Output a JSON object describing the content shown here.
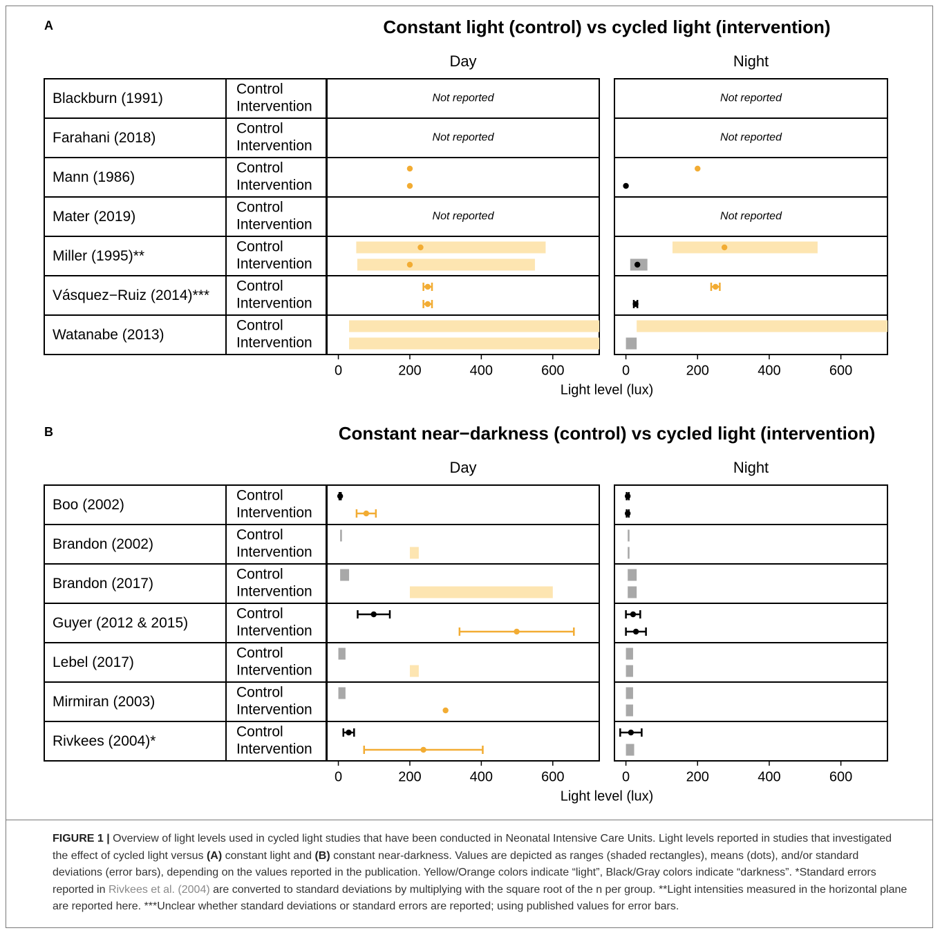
{
  "chart_data": [
    {
      "type": "range",
      "letter": "A",
      "title": "Constant light (control) vs cycled light (intervention)",
      "subplots": [
        "Day",
        "Night"
      ],
      "xlabel": "Light level (lux)",
      "xlim": [
        -32,
        730
      ],
      "xticks": [
        0,
        200,
        400,
        600
      ],
      "not_reported": "Not reported",
      "tones": {
        "light": {
          "mean": "#f2ac33",
          "range": "#fde5b1"
        },
        "dark": {
          "mean": "#000000",
          "range": "#a8a8a8"
        }
      },
      "studies": [
        {
          "name": "Blackburn (1991)",
          "groups": [
            "Control",
            "Intervention"
          ],
          "cells": [
            null,
            null
          ]
        },
        {
          "name": "Farahani (2018)",
          "groups": [
            "Control",
            "Intervention"
          ],
          "cells": [
            null,
            null
          ]
        },
        {
          "name": "Mann (1986)",
          "groups": [
            "Control",
            "Intervention"
          ],
          "cells": [
            [
              {
                "tone": "light",
                "mean": 200
              },
              {
                "tone": "light",
                "mean": 200
              }
            ],
            [
              {
                "tone": "light",
                "mean": 200
              },
              {
                "tone": "dark",
                "mean": 0
              }
            ]
          ]
        },
        {
          "name": "Mater (2019)",
          "groups": [
            "Control",
            "Intervention"
          ],
          "cells": [
            null,
            null
          ]
        },
        {
          "name": "Miller (1995)**",
          "groups": [
            "Control",
            "Intervention"
          ],
          "cells": [
            [
              {
                "tone": "light",
                "range": [
                  50,
                  580
                ],
                "mean": 230
              },
              {
                "tone": "light",
                "range": [
                  53,
                  550
                ],
                "mean": 200
              }
            ],
            [
              {
                "tone": "light",
                "range": [
                  130,
                  535
                ],
                "mean": 275
              },
              {
                "tone": "dark",
                "range": [
                  12,
                  60
                ],
                "mean": 32
              }
            ]
          ]
        },
        {
          "name": "Vásquez−Ruiz (2014)***",
          "groups": [
            "Control",
            "Intervention"
          ],
          "cells": [
            [
              {
                "tone": "light",
                "mean": 250,
                "sd": 12
              },
              {
                "tone": "light",
                "mean": 250,
                "sd": 12
              }
            ],
            [
              {
                "tone": "light",
                "mean": 250,
                "sd": 12
              },
              {
                "tone": "dark",
                "mean": 27,
                "sd": 5
              }
            ]
          ]
        },
        {
          "name": "Watanabe (2013)",
          "groups": [
            "Control",
            "Intervention"
          ],
          "cells": [
            [
              {
                "tone": "light",
                "range": [
                  30,
                  1000
                ]
              },
              {
                "tone": "light",
                "range": [
                  30,
                  1000
                ]
              }
            ],
            [
              {
                "tone": "light",
                "range": [
                  30,
                  1000
                ]
              },
              {
                "tone": "dark",
                "range": [
                  0,
                  30
                ]
              }
            ]
          ]
        }
      ]
    },
    {
      "type": "range",
      "letter": "B",
      "title": "Constant near−darkness (control) vs cycled light (intervention)",
      "subplots": [
        "Day",
        "Night"
      ],
      "xlabel": "Light level (lux)",
      "xlim": [
        -32,
        730
      ],
      "xticks": [
        0,
        200,
        400,
        600
      ],
      "not_reported": "Not reported",
      "tones": {
        "light": {
          "mean": "#f2ac33",
          "range": "#fde5b1"
        },
        "dark": {
          "mean": "#000000",
          "range": "#a8a8a8"
        }
      },
      "studies": [
        {
          "name": "Boo (2002)",
          "groups": [
            "Control",
            "Intervention"
          ],
          "cells": [
            [
              {
                "tone": "dark",
                "mean": 5,
                "sd": 2
              },
              {
                "tone": "light",
                "mean": 78,
                "sd": 27
              }
            ],
            [
              {
                "tone": "dark",
                "mean": 5,
                "sd": 3
              },
              {
                "tone": "dark",
                "mean": 5,
                "sd": 3
              }
            ]
          ]
        },
        {
          "name": "Brandon (2002)",
          "groups": [
            "Control",
            "Intervention"
          ],
          "cells": [
            [
              {
                "tone": "dark",
                "range": [
                  5,
                  10
                ]
              },
              {
                "tone": "light",
                "range": [
                  200,
                  225
                ]
              }
            ],
            [
              {
                "tone": "dark",
                "range": [
                  5,
                  10
                ]
              },
              {
                "tone": "dark",
                "range": [
                  5,
                  10
                ]
              }
            ]
          ]
        },
        {
          "name": "Brandon (2017)",
          "groups": [
            "Control",
            "Intervention"
          ],
          "cells": [
            [
              {
                "tone": "dark",
                "range": [
                  5,
                  30
                ]
              },
              {
                "tone": "light",
                "range": [
                  200,
                  600
                ]
              }
            ],
            [
              {
                "tone": "dark",
                "range": [
                  5,
                  30
                ]
              },
              {
                "tone": "dark",
                "range": [
                  5,
                  30
                ]
              }
            ]
          ]
        },
        {
          "name": "Guyer (2012 & 2015)",
          "groups": [
            "Control",
            "Intervention"
          ],
          "cells": [
            [
              {
                "tone": "dark",
                "mean": 99,
                "sd": 45
              },
              {
                "tone": "light",
                "mean": 499,
                "sd": 160
              }
            ],
            [
              {
                "tone": "dark",
                "mean": 20,
                "sd": 20
              },
              {
                "tone": "dark",
                "mean": 28,
                "sd": 28
              }
            ]
          ]
        },
        {
          "name": "Lebel (2017)",
          "groups": [
            "Control",
            "Intervention"
          ],
          "cells": [
            [
              {
                "tone": "dark",
                "range": [
                  0,
                  20
                ]
              },
              {
                "tone": "light",
                "range": [
                  200,
                  225
                ]
              }
            ],
            [
              {
                "tone": "dark",
                "range": [
                  0,
                  20
                ]
              },
              {
                "tone": "dark",
                "range": [
                  0,
                  20
                ]
              }
            ]
          ]
        },
        {
          "name": "Mirmiran (2003)",
          "groups": [
            "Control",
            "Intervention"
          ],
          "cells": [
            [
              {
                "tone": "dark",
                "range": [
                  0,
                  20
                ]
              },
              {
                "tone": "light",
                "mean": 300
              }
            ],
            [
              {
                "tone": "dark",
                "range": [
                  0,
                  20
                ]
              },
              {
                "tone": "dark",
                "range": [
                  0,
                  20
                ]
              }
            ]
          ]
        },
        {
          "name": "Rivkees (2004)*",
          "groups": [
            "Control",
            "Intervention"
          ],
          "cells": [
            [
              {
                "tone": "dark",
                "mean": 29,
                "sd": 15
              },
              {
                "tone": "light",
                "mean": 238,
                "sd": 166
              }
            ],
            [
              {
                "tone": "dark",
                "mean": 14,
                "sd": 30
              },
              {
                "tone": "dark",
                "range": [
                  0,
                  23
                ]
              }
            ]
          ]
        }
      ]
    }
  ],
  "caption": [
    {
      "text": "FIGURE 1 |",
      "style": "bold"
    },
    {
      "text": " Overview of light levels used in cycled light studies that have been conducted in Neonatal Intensive Care Units. Light levels reported in studies that investigated the effect of cycled light versus ",
      "style": "normal"
    },
    {
      "text": "(A)",
      "style": "bold"
    },
    {
      "text": " constant light and ",
      "style": "normal"
    },
    {
      "text": "(B)",
      "style": "bold"
    },
    {
      "text": " constant near-darkness. Values are depicted as ranges (shaded rectangles), means (dots), and/or standard deviations (error bars), depending on the values reported in the publication. Yellow/Orange colors indicate “light”, Black/Gray colors indicate “darkness”. *Standard errors reported in ",
      "style": "normal"
    },
    {
      "text": "Rivkees et al. (2004)",
      "style": "link"
    },
    {
      "text": " are converted to standard deviations by multiplying with the square root of the n per group. **Light intensities measured in the horizontal plane are reported here. ***Unclear whether standard deviations or standard errors are reported; using published values for error bars.",
      "style": "normal"
    }
  ]
}
